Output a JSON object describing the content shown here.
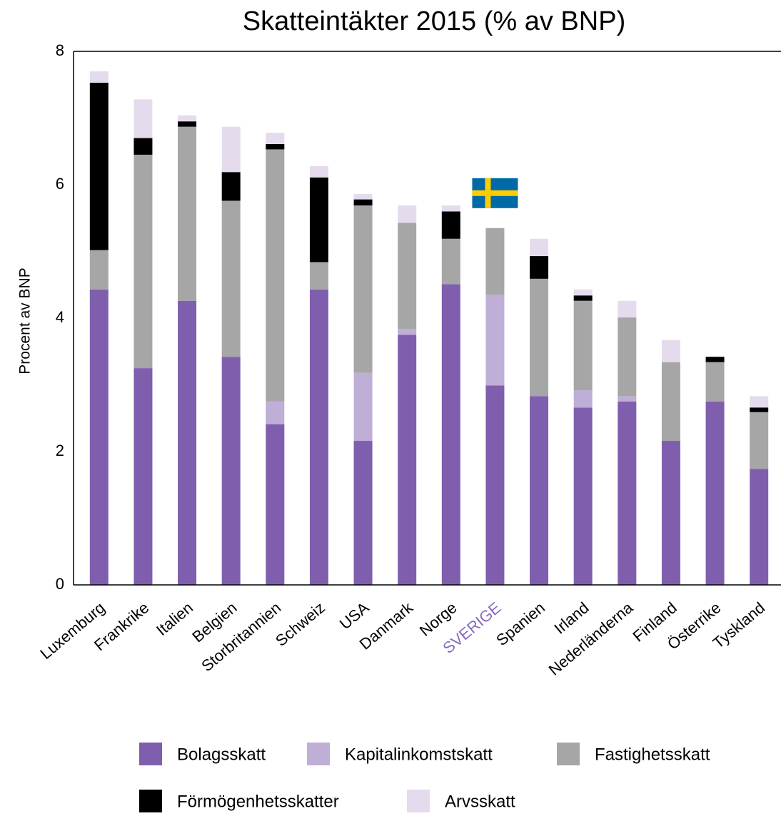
{
  "chart_data": {
    "type": "stacked_bar",
    "title": "Skatteintäkter 2015 (% av BNP)",
    "y_label": "Procent av BNP",
    "categories": [
      "Luxemburg",
      "Frankrike",
      "Italien",
      "Belgien",
      "Storbritannien",
      "Schweiz",
      "USA",
      "Danmark",
      "Norge",
      "SVERIGE",
      "Spanien",
      "Irland",
      "Nederländerna",
      "Finland",
      "Österrike",
      "Tyskland"
    ],
    "highlight": {
      "category": 9,
      "color": "#8a6bbf"
    },
    "series": [
      {
        "name": "Bolagsskatt",
        "color": "#7f5fad",
        "values": [
          4.43,
          3.25,
          4.26,
          3.42,
          2.41,
          4.43,
          2.16,
          3.75,
          4.51,
          2.99,
          2.83,
          2.66,
          2.75,
          2.16,
          2.75,
          1.74
        ]
      },
      {
        "name": "Kapitalinkomstskatt",
        "color": "#bfaed6",
        "values": [
          0,
          0,
          0,
          0,
          0.34,
          0,
          1.02,
          0.09,
          0,
          1.36,
          0,
          0.26,
          0.08,
          0,
          0,
          0
        ]
      },
      {
        "name": "Fastighetsskatt",
        "color": "#a6a6a6",
        "values": [
          0.59,
          3.2,
          2.61,
          2.34,
          3.78,
          0.41,
          2.51,
          1.59,
          0.68,
          1.0,
          1.76,
          1.34,
          1.18,
          1.18,
          0.59,
          0.85
        ]
      },
      {
        "name": "Förmögenhetsskatter",
        "color": "#000000",
        "values": [
          2.51,
          0.25,
          0.08,
          0.43,
          0.08,
          1.27,
          0.09,
          0,
          0.41,
          0,
          0.34,
          0.08,
          0,
          0,
          0.08,
          0.07
        ]
      },
      {
        "name": "Arvsskatt",
        "color": "#e4dced",
        "values": [
          0.17,
          0.58,
          0.09,
          0.68,
          0.17,
          0.17,
          0.08,
          0.26,
          0.09,
          0,
          0.26,
          0.09,
          0.25,
          0.33,
          0,
          0.17
        ]
      }
    ],
    "ylim": [
      0,
      8
    ],
    "yticks": [
      0,
      2,
      4,
      6,
      8
    ],
    "grid": false
  }
}
